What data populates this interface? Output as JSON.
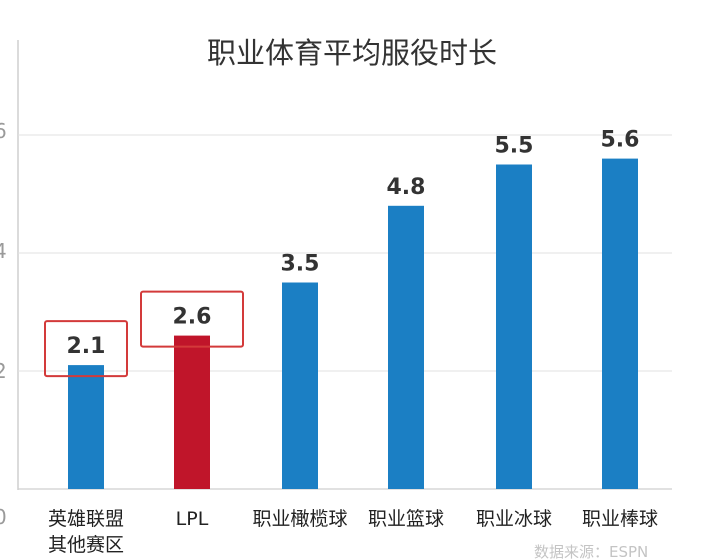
{
  "chart_data": {
    "type": "bar",
    "title": "职业体育平均服役时长",
    "categories": [
      [
        "英雄联盟",
        "其他赛区"
      ],
      [
        "LPL"
      ],
      [
        "职业橄榄球"
      ],
      [
        "职业篮球"
      ],
      [
        "职业冰球"
      ],
      [
        "职业棒球"
      ]
    ],
    "values": [
      2.1,
      2.6,
      3.5,
      4.8,
      5.5,
      5.6
    ],
    "value_labels": [
      "2.1",
      "2.6",
      "3.5",
      "4.8",
      "5.5",
      "5.6"
    ],
    "highlighted": [
      0,
      1
    ],
    "ylim": [
      0,
      6.2
    ],
    "gridlines": [
      2,
      4,
      6
    ],
    "grid": true,
    "source": "数据来源：ESPN",
    "colors": {
      "bar": "#1b7fc4",
      "highlight_bar": "#c0152a",
      "highlight_box": "#d33a3a",
      "grid": "#e2e2e2",
      "axis": "#cfcfcf"
    }
  }
}
